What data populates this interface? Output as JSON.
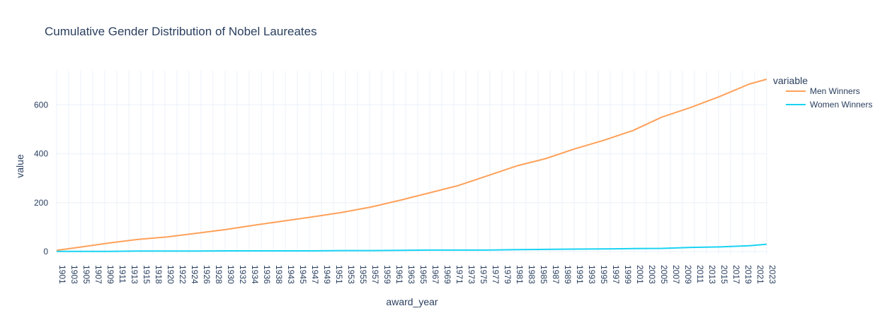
{
  "chart_data": {
    "type": "line",
    "title": "Cumulative Gender Distribution of Nobel Laureates",
    "xlabel": "award_year",
    "ylabel": "value",
    "legend_title": "variable",
    "legend_position": "right",
    "grid": true,
    "ylim": [
      0,
      740
    ],
    "yticks": [
      0,
      200,
      400,
      600
    ],
    "x": [
      1901,
      1905,
      1910,
      1915,
      1920,
      1925,
      1930,
      1935,
      1940,
      1945,
      1950,
      1955,
      1960,
      1965,
      1970,
      1975,
      1980,
      1985,
      1990,
      1995,
      2000,
      2005,
      2010,
      2015,
      2020,
      2023
    ],
    "x_tick_labels": [
      "1901",
      "1903",
      "1905",
      "1907",
      "1909",
      "1911",
      "1913",
      "1915",
      "1918",
      "1920",
      "1922",
      "1924",
      "1926",
      "1928",
      "1930",
      "1932",
      "1934",
      "1936",
      "1938",
      "1943",
      "1945",
      "1947",
      "1949",
      "1951",
      "1953",
      "1955",
      "1957",
      "1959",
      "1961",
      "1963",
      "1965",
      "1967",
      "1969",
      "1971",
      "1973",
      "1975",
      "1977",
      "1979",
      "1981",
      "1983",
      "1985",
      "1987",
      "1989",
      "1991",
      "1993",
      "1995",
      "1997",
      "1999",
      "2001",
      "2003",
      "2005",
      "2007",
      "2009",
      "2011",
      "2013",
      "2015",
      "2017",
      "2019",
      "2021",
      "2023"
    ],
    "series": [
      {
        "name": "Men Winners",
        "color": "#FFA15A",
        "values": [
          5,
          18,
          35,
          50,
          60,
          75,
          90,
          108,
          125,
          142,
          160,
          182,
          210,
          240,
          270,
          310,
          350,
          380,
          420,
          455,
          495,
          550,
          590,
          635,
          685,
          705
        ]
      },
      {
        "name": "Women Winners",
        "color": "#19D3F3",
        "values": [
          1,
          1,
          1,
          2,
          2,
          2,
          3,
          3,
          3,
          3,
          4,
          4,
          5,
          6,
          6,
          6,
          8,
          9,
          10,
          11,
          12,
          13,
          17,
          19,
          24,
          30
        ]
      }
    ]
  }
}
